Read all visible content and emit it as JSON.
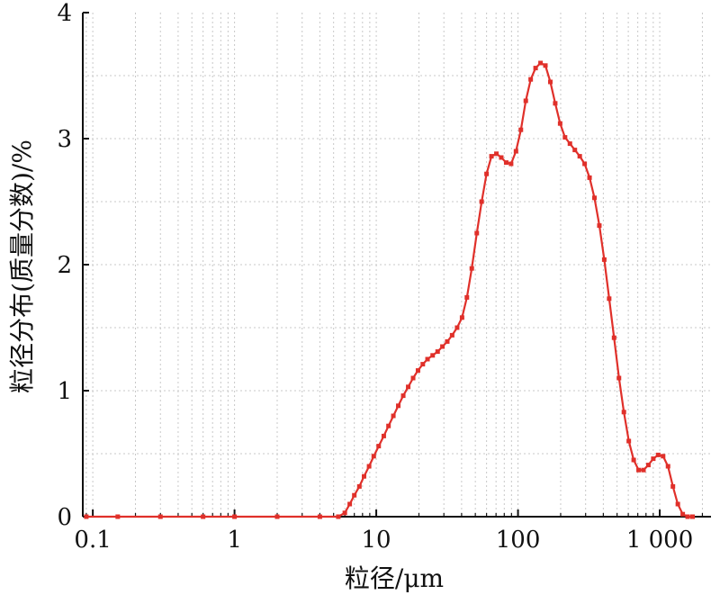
{
  "chart_data": {
    "type": "line",
    "title": "",
    "xlabel": "粒径/μm",
    "ylabel": "粒径分布(质量分数)/%",
    "x_scale": "log",
    "xlim": [
      0.085,
      2300
    ],
    "ylim": [
      0,
      4
    ],
    "x_ticks": [
      {
        "value": 0.1,
        "label": "0.1"
      },
      {
        "value": 1,
        "label": "1"
      },
      {
        "value": 10,
        "label": "10"
      },
      {
        "value": 100,
        "label": "100"
      },
      {
        "value": 1000,
        "label": "1 000"
      }
    ],
    "y_ticks": [
      {
        "value": 0,
        "label": "0"
      },
      {
        "value": 1,
        "label": "1"
      },
      {
        "value": 2,
        "label": "2"
      },
      {
        "value": 3,
        "label": "3"
      },
      {
        "value": 4,
        "label": "4"
      }
    ],
    "grid": true,
    "legend": "none",
    "series": [
      {
        "color": "#e0302a",
        "marker": "square",
        "points": [
          [
            0.09,
            0.0
          ],
          [
            0.15,
            0.0
          ],
          [
            0.3,
            0.0
          ],
          [
            0.6,
            0.0
          ],
          [
            1.0,
            0.0
          ],
          [
            2.0,
            0.0
          ],
          [
            4.0,
            0.0
          ],
          [
            5.4,
            0.0
          ],
          [
            6.0,
            0.03
          ],
          [
            6.5,
            0.1
          ],
          [
            7.0,
            0.17
          ],
          [
            7.6,
            0.24
          ],
          [
            8.2,
            0.32
          ],
          [
            8.9,
            0.4
          ],
          [
            9.6,
            0.48
          ],
          [
            10.4,
            0.56
          ],
          [
            11.3,
            0.64
          ],
          [
            12.2,
            0.72
          ],
          [
            13.2,
            0.8
          ],
          [
            14.3,
            0.88
          ],
          [
            15.5,
            0.96
          ],
          [
            16.8,
            1.03
          ],
          [
            18.2,
            1.1
          ],
          [
            19.7,
            1.16
          ],
          [
            21.3,
            1.21
          ],
          [
            23.0,
            1.25
          ],
          [
            25.0,
            1.28
          ],
          [
            27.1,
            1.31
          ],
          [
            29.3,
            1.35
          ],
          [
            31.7,
            1.39
          ],
          [
            34.3,
            1.44
          ],
          [
            37.2,
            1.5
          ],
          [
            40.3,
            1.58
          ],
          [
            43.6,
            1.74
          ],
          [
            47.2,
            1.97
          ],
          [
            51.2,
            2.25
          ],
          [
            55.4,
            2.5
          ],
          [
            60.0,
            2.72
          ],
          [
            65.0,
            2.86
          ],
          [
            70.4,
            2.88
          ],
          [
            76.2,
            2.85
          ],
          [
            82.6,
            2.81
          ],
          [
            89.4,
            2.8
          ],
          [
            96.8,
            2.9
          ],
          [
            104.8,
            3.07
          ],
          [
            113.5,
            3.3
          ],
          [
            122.9,
            3.47
          ],
          [
            133.1,
            3.56
          ],
          [
            144.2,
            3.6
          ],
          [
            156.1,
            3.58
          ],
          [
            169.1,
            3.45
          ],
          [
            183.1,
            3.28
          ],
          [
            198.3,
            3.12
          ],
          [
            214.7,
            3.01
          ],
          [
            232.5,
            2.96
          ],
          [
            251.8,
            2.91
          ],
          [
            272.7,
            2.86
          ],
          [
            295.3,
            2.8
          ],
          [
            319.8,
            2.69
          ],
          [
            346.3,
            2.53
          ],
          [
            375.0,
            2.31
          ],
          [
            406.1,
            2.04
          ],
          [
            439.8,
            1.73
          ],
          [
            476.3,
            1.42
          ],
          [
            515.8,
            1.1
          ],
          [
            558.6,
            0.83
          ],
          [
            604.9,
            0.6
          ],
          [
            655.1,
            0.45
          ],
          [
            709.4,
            0.37
          ],
          [
            768.2,
            0.37
          ],
          [
            831.9,
            0.41
          ],
          [
            900.9,
            0.46
          ],
          [
            975.6,
            0.49
          ],
          [
            1056.5,
            0.48
          ],
          [
            1144.2,
            0.4
          ],
          [
            1239.1,
            0.24
          ],
          [
            1341.9,
            0.1
          ],
          [
            1453.2,
            0.02
          ],
          [
            1573.7,
            0.0
          ],
          [
            1704.2,
            0.0
          ]
        ]
      }
    ]
  }
}
